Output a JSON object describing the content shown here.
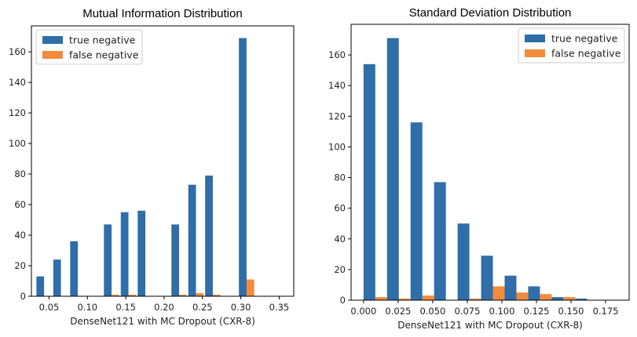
{
  "chart_data": [
    {
      "type": "bar",
      "title": "Mutual Information Distribution",
      "xlabel": "DenseNet121 with MC Dropout (CXR-8)",
      "ylabel": "",
      "xlim": [
        0.027,
        0.369
      ],
      "ylim": [
        0,
        177
      ],
      "xticks": [
        0.05,
        0.1,
        0.15,
        0.2,
        0.25,
        0.3,
        0.35
      ],
      "xtick_labels": [
        "0.05",
        "0.10",
        "0.15",
        "0.20",
        "0.25",
        "0.30",
        "0.35"
      ],
      "yticks": [
        0,
        20,
        40,
        60,
        80,
        100,
        120,
        140,
        160
      ],
      "bin_centers": [
        0.0435,
        0.0655,
        0.0875,
        0.1095,
        0.1315,
        0.1535,
        0.1755,
        0.1975,
        0.2195,
        0.2415,
        0.2635,
        0.2855,
        0.3075,
        0.3295,
        0.3515
      ],
      "bar_width": 0.01,
      "legend_position": "upper-left",
      "series": [
        {
          "name": "true negative",
          "color": "#2f6ea8",
          "values": [
            13,
            24,
            36,
            0,
            47,
            55,
            56,
            0,
            47,
            73,
            79,
            0,
            169,
            0,
            0
          ]
        },
        {
          "name": "false negative",
          "color": "#f28b3c",
          "values": [
            0,
            0,
            0,
            0,
            1,
            1,
            0,
            0,
            1,
            2,
            1,
            0,
            11,
            0,
            0
          ]
        }
      ]
    },
    {
      "type": "bar",
      "title": "Standard Deviation Distribution",
      "xlabel": "DenseNet121 with MC Dropout (CXR-8)",
      "ylabel": "",
      "xlim": [
        -0.009,
        0.192
      ],
      "ylim": [
        0,
        180
      ],
      "xticks": [
        0.0,
        0.025,
        0.05,
        0.075,
        0.1,
        0.125,
        0.15,
        0.175
      ],
      "xtick_labels": [
        "0.000",
        "0.025",
        "0.050",
        "0.075",
        "0.100",
        "0.125",
        "0.150",
        "0.175"
      ],
      "yticks": [
        0,
        20,
        40,
        60,
        80,
        100,
        120,
        140,
        160
      ],
      "bin_centers": [
        0.0085,
        0.0255,
        0.0425,
        0.0595,
        0.0765,
        0.0935,
        0.1105,
        0.1275,
        0.1445,
        0.1615
      ],
      "bar_width": 0.0085,
      "legend_position": "upper-right",
      "series": [
        {
          "name": "true negative",
          "color": "#2f6ea8",
          "values": [
            154,
            171,
            116,
            77,
            50,
            29,
            16,
            9,
            2,
            1
          ]
        },
        {
          "name": "false negative",
          "color": "#f28b3c",
          "values": [
            2,
            1,
            3,
            0,
            1,
            9,
            5,
            4,
            2,
            0
          ]
        }
      ]
    }
  ]
}
